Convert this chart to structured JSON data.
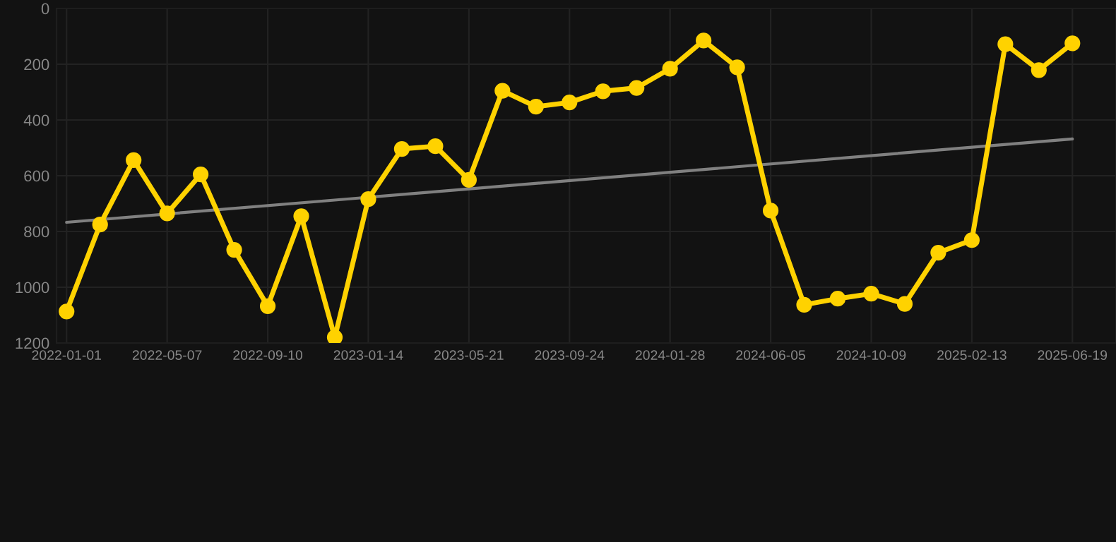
{
  "chart_data": {
    "type": "line",
    "categories": [
      "2022-01-01",
      null,
      null,
      "2022-05-07",
      null,
      null,
      "2022-09-10",
      null,
      null,
      "2023-01-14",
      null,
      null,
      "2023-05-21",
      null,
      null,
      "2023-09-24",
      null,
      null,
      "2024-01-28",
      null,
      null,
      "2024-06-05",
      null,
      null,
      "2024-10-09",
      null,
      null,
      "2025-02-13",
      null,
      null,
      "2025-06-19"
    ],
    "series": [
      {
        "color": "#ffd200",
        "marker": "circle",
        "values": [
          1087,
          775,
          544,
          735,
          595,
          866,
          1068,
          745,
          1180,
          684,
          504,
          494,
          615,
          295,
          352,
          337,
          297,
          285,
          216,
          115,
          211,
          725,
          1063,
          1041,
          1023,
          1060,
          876,
          831,
          128,
          221,
          125
        ]
      },
      {
        "color": "#808080",
        "marker": "none",
        "values": [
          767,
          null,
          null,
          null,
          null,
          null,
          null,
          null,
          null,
          null,
          null,
          null,
          null,
          null,
          null,
          null,
          null,
          null,
          null,
          null,
          null,
          null,
          null,
          null,
          null,
          null,
          null,
          null,
          null,
          null,
          468
        ]
      }
    ],
    "ylim": [
      1200,
      0
    ],
    "yticks": [
      0,
      200,
      400,
      600,
      800,
      1000,
      1200
    ],
    "grid": true,
    "legend": false
  }
}
